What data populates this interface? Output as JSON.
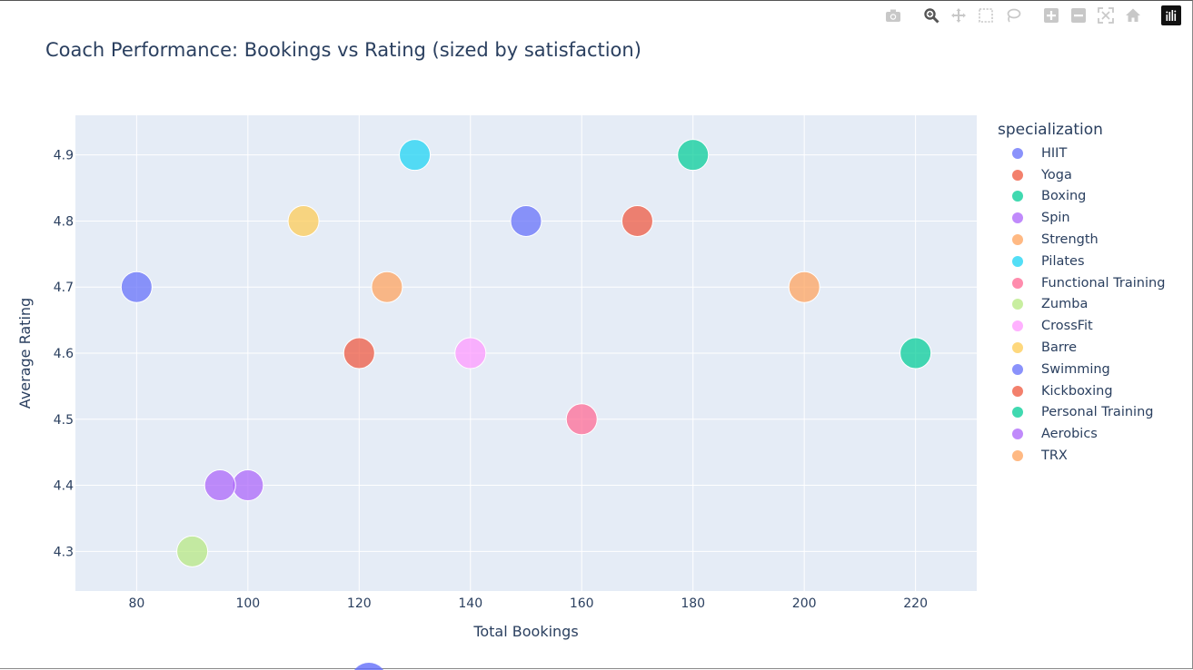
{
  "toolbar": {
    "icons": [
      "camera-icon",
      "zoom-icon",
      "pan-icon",
      "box-select-icon",
      "lasso-select-icon",
      "zoom-in-icon",
      "zoom-out-icon",
      "autoscale-icon",
      "reset-axes-icon",
      "plotly-logo-icon"
    ]
  },
  "chart_data": {
    "type": "scatter",
    "title": "Coach Performance: Bookings vs Rating (sized by satisfaction)",
    "xlabel": "Total Bookings",
    "ylabel": "Average Rating",
    "xlim": [
      69,
      231
    ],
    "ylim": [
      4.24,
      4.96
    ],
    "xticks": [
      80,
      100,
      120,
      140,
      160,
      180,
      200,
      220
    ],
    "yticks": [
      4.3,
      4.4,
      4.5,
      4.6,
      4.7,
      4.8,
      4.9
    ],
    "grid": true,
    "legend_title": "specialization",
    "legend_position": "right",
    "series": [
      {
        "name": "HIIT",
        "color": "#636efa",
        "points": [
          {
            "x": 150,
            "y": 4.8
          }
        ]
      },
      {
        "name": "Yoga",
        "color": "#EF553B",
        "points": [
          {
            "x": 170,
            "y": 4.8
          }
        ]
      },
      {
        "name": "Boxing",
        "color": "#00cc96",
        "points": [
          {
            "x": 180,
            "y": 4.9
          }
        ]
      },
      {
        "name": "Spin",
        "color": "#ab63fa",
        "points": [
          {
            "x": 100,
            "y": 4.4
          }
        ]
      },
      {
        "name": "Strength",
        "color": "#FFA15A",
        "points": [
          {
            "x": 200,
            "y": 4.7
          }
        ]
      },
      {
        "name": "Pilates",
        "color": "#19d3f3",
        "points": [
          {
            "x": 130,
            "y": 4.9
          }
        ]
      },
      {
        "name": "Functional Training",
        "color": "#FF6692",
        "points": [
          {
            "x": 160,
            "y": 4.5
          }
        ]
      },
      {
        "name": "Zumba",
        "color": "#B6E880",
        "points": [
          {
            "x": 90,
            "y": 4.3
          }
        ]
      },
      {
        "name": "CrossFit",
        "color": "#FF97FF",
        "points": [
          {
            "x": 140,
            "y": 4.6
          }
        ]
      },
      {
        "name": "Barre",
        "color": "#FECB52",
        "points": [
          {
            "x": 110,
            "y": 4.8
          }
        ]
      },
      {
        "name": "Swimming",
        "color": "#636efa",
        "points": [
          {
            "x": 80,
            "y": 4.7
          }
        ]
      },
      {
        "name": "Kickboxing",
        "color": "#EF553B",
        "points": [
          {
            "x": 120,
            "y": 4.6
          }
        ]
      },
      {
        "name": "Personal Training",
        "color": "#00cc96",
        "points": [
          {
            "x": 220,
            "y": 4.6
          }
        ]
      },
      {
        "name": "Aerobics",
        "color": "#ab63fa",
        "points": [
          {
            "x": 95,
            "y": 4.4
          }
        ]
      },
      {
        "name": "TRX",
        "color": "#FFA15A",
        "points": [
          {
            "x": 125,
            "y": 4.7
          }
        ]
      }
    ]
  }
}
